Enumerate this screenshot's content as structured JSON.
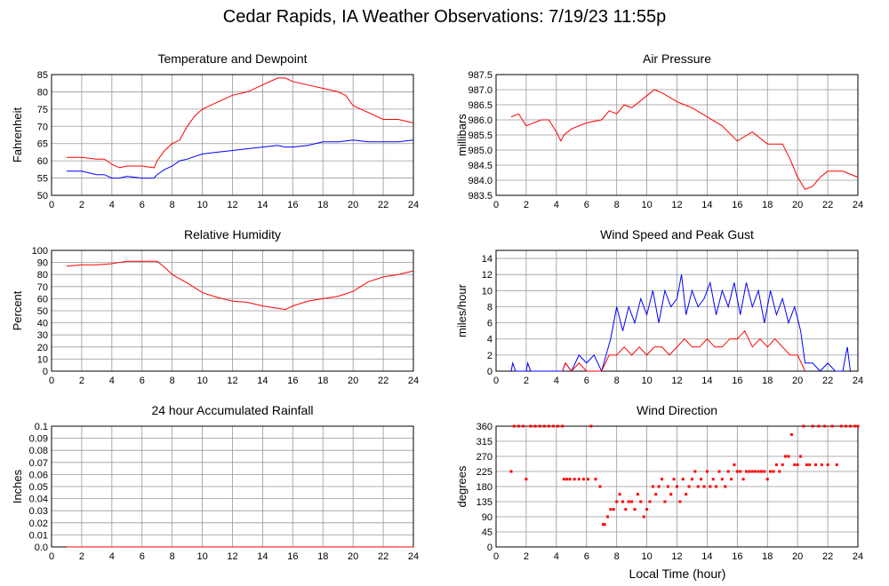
{
  "page": {
    "title": "Cedar Rapids, IA Weather Observations: 7/19/23 11:55p",
    "xlabel": "Local Time (hour)"
  },
  "colors": {
    "red": "#ff0000",
    "blue": "#0000ff",
    "grid": "#999999"
  },
  "chart_data": [
    {
      "id": "temp",
      "type": "line",
      "title": "Temperature and Dewpoint",
      "ylabel": "Fahrenheit",
      "xlim": [
        0,
        24
      ],
      "ylim": [
        50,
        85
      ],
      "xticks": [
        2,
        4,
        6,
        8,
        10,
        12,
        14,
        16,
        18,
        20,
        22,
        24
      ],
      "yticks": [
        50,
        55,
        60,
        65,
        70,
        75,
        80,
        85
      ],
      "grid": true,
      "series": [
        {
          "color": "red",
          "x": [
            1,
            2,
            3,
            3.5,
            4,
            4.5,
            5,
            6,
            6.8,
            7,
            7.5,
            8,
            8.5,
            9,
            9.5,
            10,
            11,
            12,
            13,
            14,
            15,
            15.5,
            16,
            17,
            18,
            19,
            19.5,
            20,
            21,
            22,
            23,
            24
          ],
          "y": [
            61,
            61,
            60.5,
            60.5,
            59,
            58,
            58.5,
            58.5,
            58,
            60,
            63,
            65,
            66,
            70,
            73,
            75,
            77,
            79,
            80,
            82,
            84,
            84,
            83,
            82,
            81,
            80,
            79,
            76,
            74,
            72,
            72,
            71
          ]
        },
        {
          "color": "blue",
          "x": [
            1,
            2,
            3,
            3.5,
            4,
            4.5,
            5,
            6,
            6.8,
            7,
            7.5,
            8,
            8.5,
            9,
            10,
            11,
            12,
            13,
            14,
            15,
            15.5,
            16,
            17,
            18,
            19,
            20,
            21,
            22,
            23,
            24
          ],
          "y": [
            57,
            57,
            56,
            56,
            55,
            55,
            55.5,
            55,
            55,
            56,
            57.5,
            58.5,
            60,
            60.5,
            62,
            62.5,
            63,
            63.5,
            64,
            64.5,
            64,
            64,
            64.5,
            65.5,
            65.5,
            66,
            65.5,
            65.5,
            65.5,
            66
          ]
        }
      ]
    },
    {
      "id": "pres",
      "type": "line",
      "title": "Air Pressure",
      "ylabel": "millibars",
      "xlim": [
        0,
        24
      ],
      "ylim": [
        983.5,
        987.5
      ],
      "xticks": [
        2,
        4,
        6,
        8,
        10,
        12,
        14,
        16,
        18,
        20,
        22,
        24
      ],
      "yticks": [
        983.5,
        984.0,
        984.5,
        985.0,
        985.5,
        986.0,
        986.5,
        987.0,
        987.5
      ],
      "grid": true,
      "series": [
        {
          "color": "red",
          "x": [
            1,
            1.5,
            2,
            3,
            3.5,
            4,
            4.3,
            4.5,
            5,
            6,
            7,
            7.5,
            8,
            8.5,
            9,
            10,
            10.5,
            11,
            12,
            13,
            14,
            15,
            16,
            17,
            18,
            19,
            19.5,
            20,
            20.5,
            21,
            21.5,
            22,
            23,
            24
          ],
          "y": [
            986.1,
            986.2,
            985.8,
            986.0,
            986.0,
            985.6,
            985.3,
            985.5,
            985.7,
            985.9,
            986.0,
            986.3,
            986.2,
            986.5,
            986.4,
            986.8,
            987.0,
            986.9,
            986.6,
            986.4,
            986.1,
            985.8,
            985.3,
            985.6,
            985.2,
            985.2,
            984.7,
            984.1,
            983.7,
            983.8,
            984.1,
            984.3,
            984.3,
            984.1
          ]
        }
      ]
    },
    {
      "id": "rh",
      "type": "line",
      "title": "Relative Humidity",
      "ylabel": "Percent",
      "xlim": [
        0,
        24
      ],
      "ylim": [
        0,
        100
      ],
      "xticks": [
        2,
        4,
        6,
        8,
        10,
        12,
        14,
        16,
        18,
        20,
        22,
        24
      ],
      "yticks": [
        0,
        10,
        20,
        30,
        40,
        50,
        60,
        70,
        80,
        90,
        100
      ],
      "grid": true,
      "series": [
        {
          "color": "red",
          "x": [
            1,
            2,
            3,
            4,
            5,
            6,
            7,
            7.5,
            8,
            9,
            10,
            11,
            12,
            13,
            14,
            15,
            15.5,
            16,
            17,
            18,
            19,
            20,
            21,
            22,
            23,
            24
          ],
          "y": [
            87,
            88,
            88,
            89,
            91,
            91,
            91,
            86,
            80,
            73,
            65,
            61,
            58,
            57,
            54,
            52,
            51,
            54,
            58,
            60,
            62,
            66,
            74,
            78,
            80,
            83
          ]
        }
      ]
    },
    {
      "id": "wind",
      "type": "line",
      "title": "Wind Speed and Peak Gust",
      "ylabel": "miles/hour",
      "xlim": [
        0,
        24
      ],
      "ylim": [
        0,
        15
      ],
      "xticks": [
        2,
        4,
        6,
        8,
        10,
        12,
        14,
        16,
        18,
        20,
        22,
        24
      ],
      "yticks": [
        0,
        2,
        4,
        6,
        8,
        10,
        12,
        14
      ],
      "grid": true,
      "series": [
        {
          "color": "blue",
          "x": [
            1,
            1.1,
            1.3,
            2,
            2.1,
            2.3,
            4.4,
            4.6,
            5,
            5.5,
            6,
            6.5,
            7,
            7.3,
            7.6,
            8,
            8.4,
            8.8,
            9.2,
            9.6,
            10,
            10.4,
            10.8,
            11.2,
            11.6,
            12,
            12.3,
            12.6,
            13,
            13.4,
            13.8,
            14.2,
            14.6,
            15,
            15.4,
            15.8,
            16.2,
            16.6,
            17,
            17.4,
            17.8,
            18.2,
            18.6,
            19,
            19.4,
            19.8,
            20.2,
            20.5,
            21,
            21.5,
            22,
            22.5,
            23,
            23.3,
            23.5
          ],
          "y": [
            0,
            1,
            0,
            0,
            1,
            0,
            0,
            1,
            0,
            2,
            1,
            2,
            0,
            2,
            4,
            8,
            5,
            8,
            6,
            9,
            7,
            10,
            6,
            10,
            8,
            9,
            12,
            7,
            10,
            8,
            9,
            11,
            7,
            10,
            8,
            11,
            7,
            11,
            8,
            10,
            6,
            10,
            7,
            9,
            6,
            8,
            5,
            1,
            1,
            0,
            1,
            0,
            0,
            3,
            0
          ]
        },
        {
          "color": "red",
          "x": [
            4.4,
            4.6,
            5,
            5.5,
            6,
            7,
            7.5,
            8,
            8.5,
            9,
            9.5,
            10,
            10.5,
            11,
            11.5,
            12,
            12.5,
            13,
            13.5,
            14,
            14.5,
            15,
            15.5,
            16,
            16.5,
            17,
            17.5,
            18,
            18.5,
            19,
            19.5,
            20,
            20.5
          ],
          "y": [
            0,
            1,
            0,
            1,
            0,
            0,
            2,
            2,
            3,
            2,
            3,
            2,
            3,
            3,
            2,
            3,
            4,
            3,
            3,
            4,
            3,
            3,
            4,
            4,
            5,
            3,
            4,
            3,
            4,
            3,
            2,
            2,
            0
          ]
        }
      ]
    },
    {
      "id": "rain",
      "type": "line",
      "title": "24 hour Accumulated Rainfall",
      "ylabel": "Inches",
      "xlim": [
        0,
        24
      ],
      "ylim": [
        0,
        0.1
      ],
      "xticks": [
        2,
        4,
        6,
        8,
        10,
        12,
        14,
        16,
        18,
        20,
        22,
        24
      ],
      "yticks": [
        0.0,
        0.01,
        0.02,
        0.03,
        0.04,
        0.05,
        0.06,
        0.07,
        0.08,
        0.09,
        0.1
      ],
      "ytick_labels": [
        "0.0",
        "0.01",
        "0.02",
        "0.03",
        "0.04",
        "0.05",
        "0.06",
        "0.07",
        "0.08",
        "0.09",
        "0.1"
      ],
      "grid": true,
      "series": [
        {
          "color": "red",
          "x": [
            1,
            24
          ],
          "y": [
            0,
            0
          ]
        }
      ]
    },
    {
      "id": "wdir",
      "type": "scatter",
      "title": "Wind Direction",
      "ylabel": "degrees",
      "xlim": [
        0,
        24
      ],
      "ylim": [
        0,
        360
      ],
      "xticks": [
        2,
        4,
        6,
        8,
        10,
        12,
        14,
        16,
        18,
        20,
        22,
        24
      ],
      "yticks": [
        0,
        45,
        90,
        135,
        180,
        225,
        270,
        315,
        360
      ],
      "grid": true,
      "series": [
        {
          "color": "red",
          "x": [
            1,
            1.2,
            1.5,
            1.8,
            2,
            2.3,
            2.6,
            2.9,
            3.2,
            3.5,
            3.8,
            4.1,
            4.4,
            4.5,
            4.7,
            4.9,
            5.2,
            5.5,
            5.8,
            6.1,
            6.3,
            6.6,
            6.9,
            7.1,
            7.2,
            7.4,
            7.6,
            7.8,
            8,
            8.2,
            8.4,
            8.6,
            8.8,
            9,
            9.2,
            9.4,
            9.6,
            9.8,
            10,
            10.2,
            10.4,
            10.6,
            10.8,
            11,
            11.2,
            11.4,
            11.6,
            11.8,
            12,
            12.2,
            12.4,
            12.6,
            12.8,
            13,
            13.2,
            13.4,
            13.6,
            13.8,
            14,
            14.2,
            14.4,
            14.6,
            14.8,
            15,
            15.2,
            15.4,
            15.6,
            15.8,
            16,
            16.2,
            16.4,
            16.6,
            16.8,
            17,
            17.2,
            17.4,
            17.6,
            17.8,
            18,
            18.2,
            18.4,
            18.6,
            18.8,
            19,
            19.2,
            19.4,
            19.6,
            19.8,
            20,
            20.2,
            20.4,
            20.6,
            20.8,
            21,
            21.2,
            21.4,
            21.6,
            21.8,
            22,
            22.3,
            22.6,
            22.9,
            23.2,
            23.5,
            23.8,
            24
          ],
          "y": [
            225,
            360,
            360,
            360,
            202,
            360,
            360,
            360,
            360,
            360,
            360,
            360,
            360,
            202,
            202,
            202,
            202,
            202,
            202,
            202,
            360,
            202,
            180,
            67,
            67,
            90,
            112,
            112,
            135,
            157,
            135,
            112,
            135,
            135,
            112,
            157,
            135,
            90,
            112,
            135,
            180,
            157,
            180,
            202,
            135,
            180,
            157,
            202,
            180,
            135,
            202,
            157,
            180,
            202,
            225,
            180,
            202,
            180,
            225,
            180,
            202,
            180,
            225,
            202,
            180,
            225,
            202,
            245,
            225,
            225,
            202,
            225,
            225,
            225,
            225,
            225,
            225,
            225,
            202,
            225,
            225,
            245,
            225,
            245,
            270,
            270,
            335,
            245,
            245,
            270,
            360,
            245,
            245,
            360,
            245,
            360,
            245,
            360,
            245,
            360,
            245,
            360,
            360,
            360,
            360,
            360
          ]
        }
      ]
    }
  ]
}
